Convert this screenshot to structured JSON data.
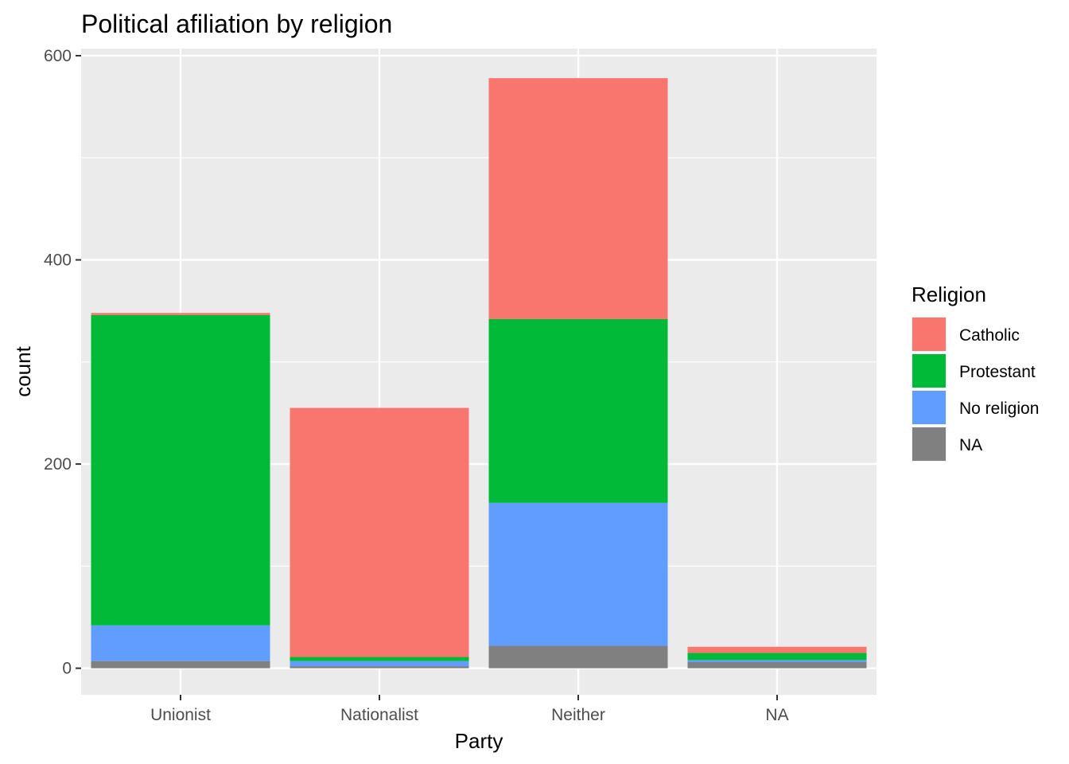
{
  "chart_data": {
    "type": "bar",
    "stacked": true,
    "title": "Political afiliation by religion",
    "xlabel": "Party",
    "ylabel": "count",
    "categories": [
      "Unionist",
      "Nationalist",
      "Neither",
      "NA"
    ],
    "ylim": [
      -26,
      607
    ],
    "yticks": [
      0,
      200,
      400,
      600
    ],
    "grid": true,
    "legend_position": "right",
    "legend_title": "Religion",
    "series": [
      {
        "name": "Catholic",
        "color": "#F8766D",
        "values": [
          2,
          244,
          236,
          6
        ]
      },
      {
        "name": "Protestant",
        "color": "#00BA38",
        "values": [
          304,
          4,
          180,
          7
        ]
      },
      {
        "name": "No religion",
        "color": "#619CFF",
        "values": [
          35,
          5,
          140,
          2
        ]
      },
      {
        "name": "NA",
        "color": "#808080",
        "values": [
          7,
          2,
          22,
          6
        ]
      }
    ],
    "panel_background": "#EBEBEB",
    "grid_color": "#FFFFFF"
  }
}
